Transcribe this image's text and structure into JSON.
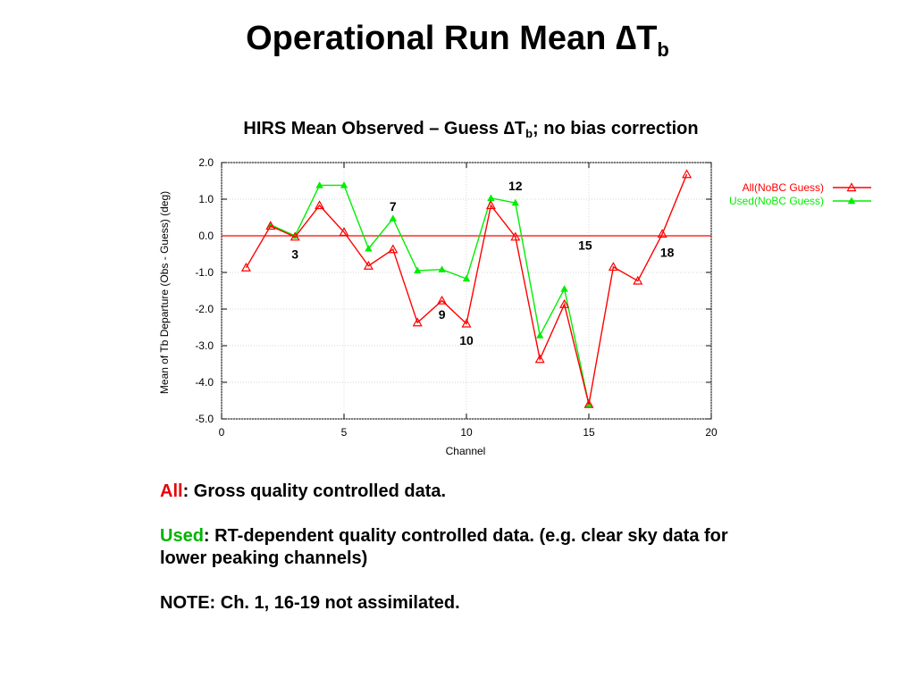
{
  "slide": {
    "title_main": "Operational Run Mean ",
    "title_delta": "∆",
    "title_T": "T",
    "title_sub": "b"
  },
  "chart_title": {
    "prefix": "HIRS Mean Observed – Guess ",
    "delta": "∆",
    "T": "T",
    "sub": "b",
    "suffix": "; no bias correction"
  },
  "chart_data": {
    "type": "line",
    "xlabel": "Channel",
    "ylabel": "Mean of Tb Departure (Obs - Guess) (deg)",
    "xlim": [
      0,
      20
    ],
    "ylim": [
      -5.0,
      2.0
    ],
    "xticks": [
      0,
      5,
      10,
      15,
      20
    ],
    "yticks": [
      2.0,
      1.0,
      0.0,
      -1.0,
      -2.0,
      -3.0,
      -4.0,
      -5.0
    ],
    "ytick_labels": [
      "2.0",
      "1.0",
      "0.0",
      "-1.0",
      "-2.0",
      "-3.0",
      "-4.0",
      "-5.0"
    ],
    "grid": true,
    "zero_line": 0,
    "legend_position": "top-right",
    "series": [
      {
        "name": "All(NoBC Guess)",
        "color": "#ff0000",
        "marker": "triangle-open",
        "x": [
          1,
          2,
          3,
          4,
          5,
          6,
          7,
          8,
          9,
          10,
          11,
          12,
          13,
          14,
          15,
          16,
          17,
          18,
          19
        ],
        "y": [
          -0.87,
          0.27,
          -0.03,
          0.83,
          0.1,
          -0.82,
          -0.37,
          -2.37,
          -1.77,
          -2.4,
          0.83,
          -0.03,
          -3.37,
          -1.87,
          -4.6,
          -0.85,
          -1.23,
          0.05,
          1.68
        ]
      },
      {
        "name": "Used(NoBC Guess)",
        "color": "#00ee00",
        "marker": "triangle-filled",
        "x": [
          2,
          3,
          4,
          5,
          6,
          7,
          8,
          9,
          10,
          11,
          12,
          13,
          14,
          15
        ],
        "y": [
          0.3,
          0.0,
          1.38,
          1.38,
          -0.35,
          0.47,
          -0.95,
          -0.92,
          -1.17,
          1.03,
          0.9,
          -2.72,
          -1.45,
          -4.6
        ]
      }
    ],
    "annotations": [
      {
        "text": "3",
        "x": 3,
        "y": -0.5
      },
      {
        "text": "7",
        "x": 7,
        "y": 0.8
      },
      {
        "text": "9",
        "x": 9,
        "y": -2.15
      },
      {
        "text": "10",
        "x": 10,
        "y": -2.85
      },
      {
        "text": "12",
        "x": 12,
        "y": 1.37
      },
      {
        "text": "15",
        "x": 14.85,
        "y": -0.25
      },
      {
        "text": "18",
        "x": 18.2,
        "y": -0.45
      }
    ]
  },
  "notes": {
    "all_label": "All",
    "all_text": ": Gross quality controlled data.",
    "used_label": "Used",
    "used_text": ": RT-dependent quality controlled data. (e.g. clear sky data for lower peaking channels)",
    "note_text": "NOTE: Ch. 1, 16-19 not assimilated."
  }
}
